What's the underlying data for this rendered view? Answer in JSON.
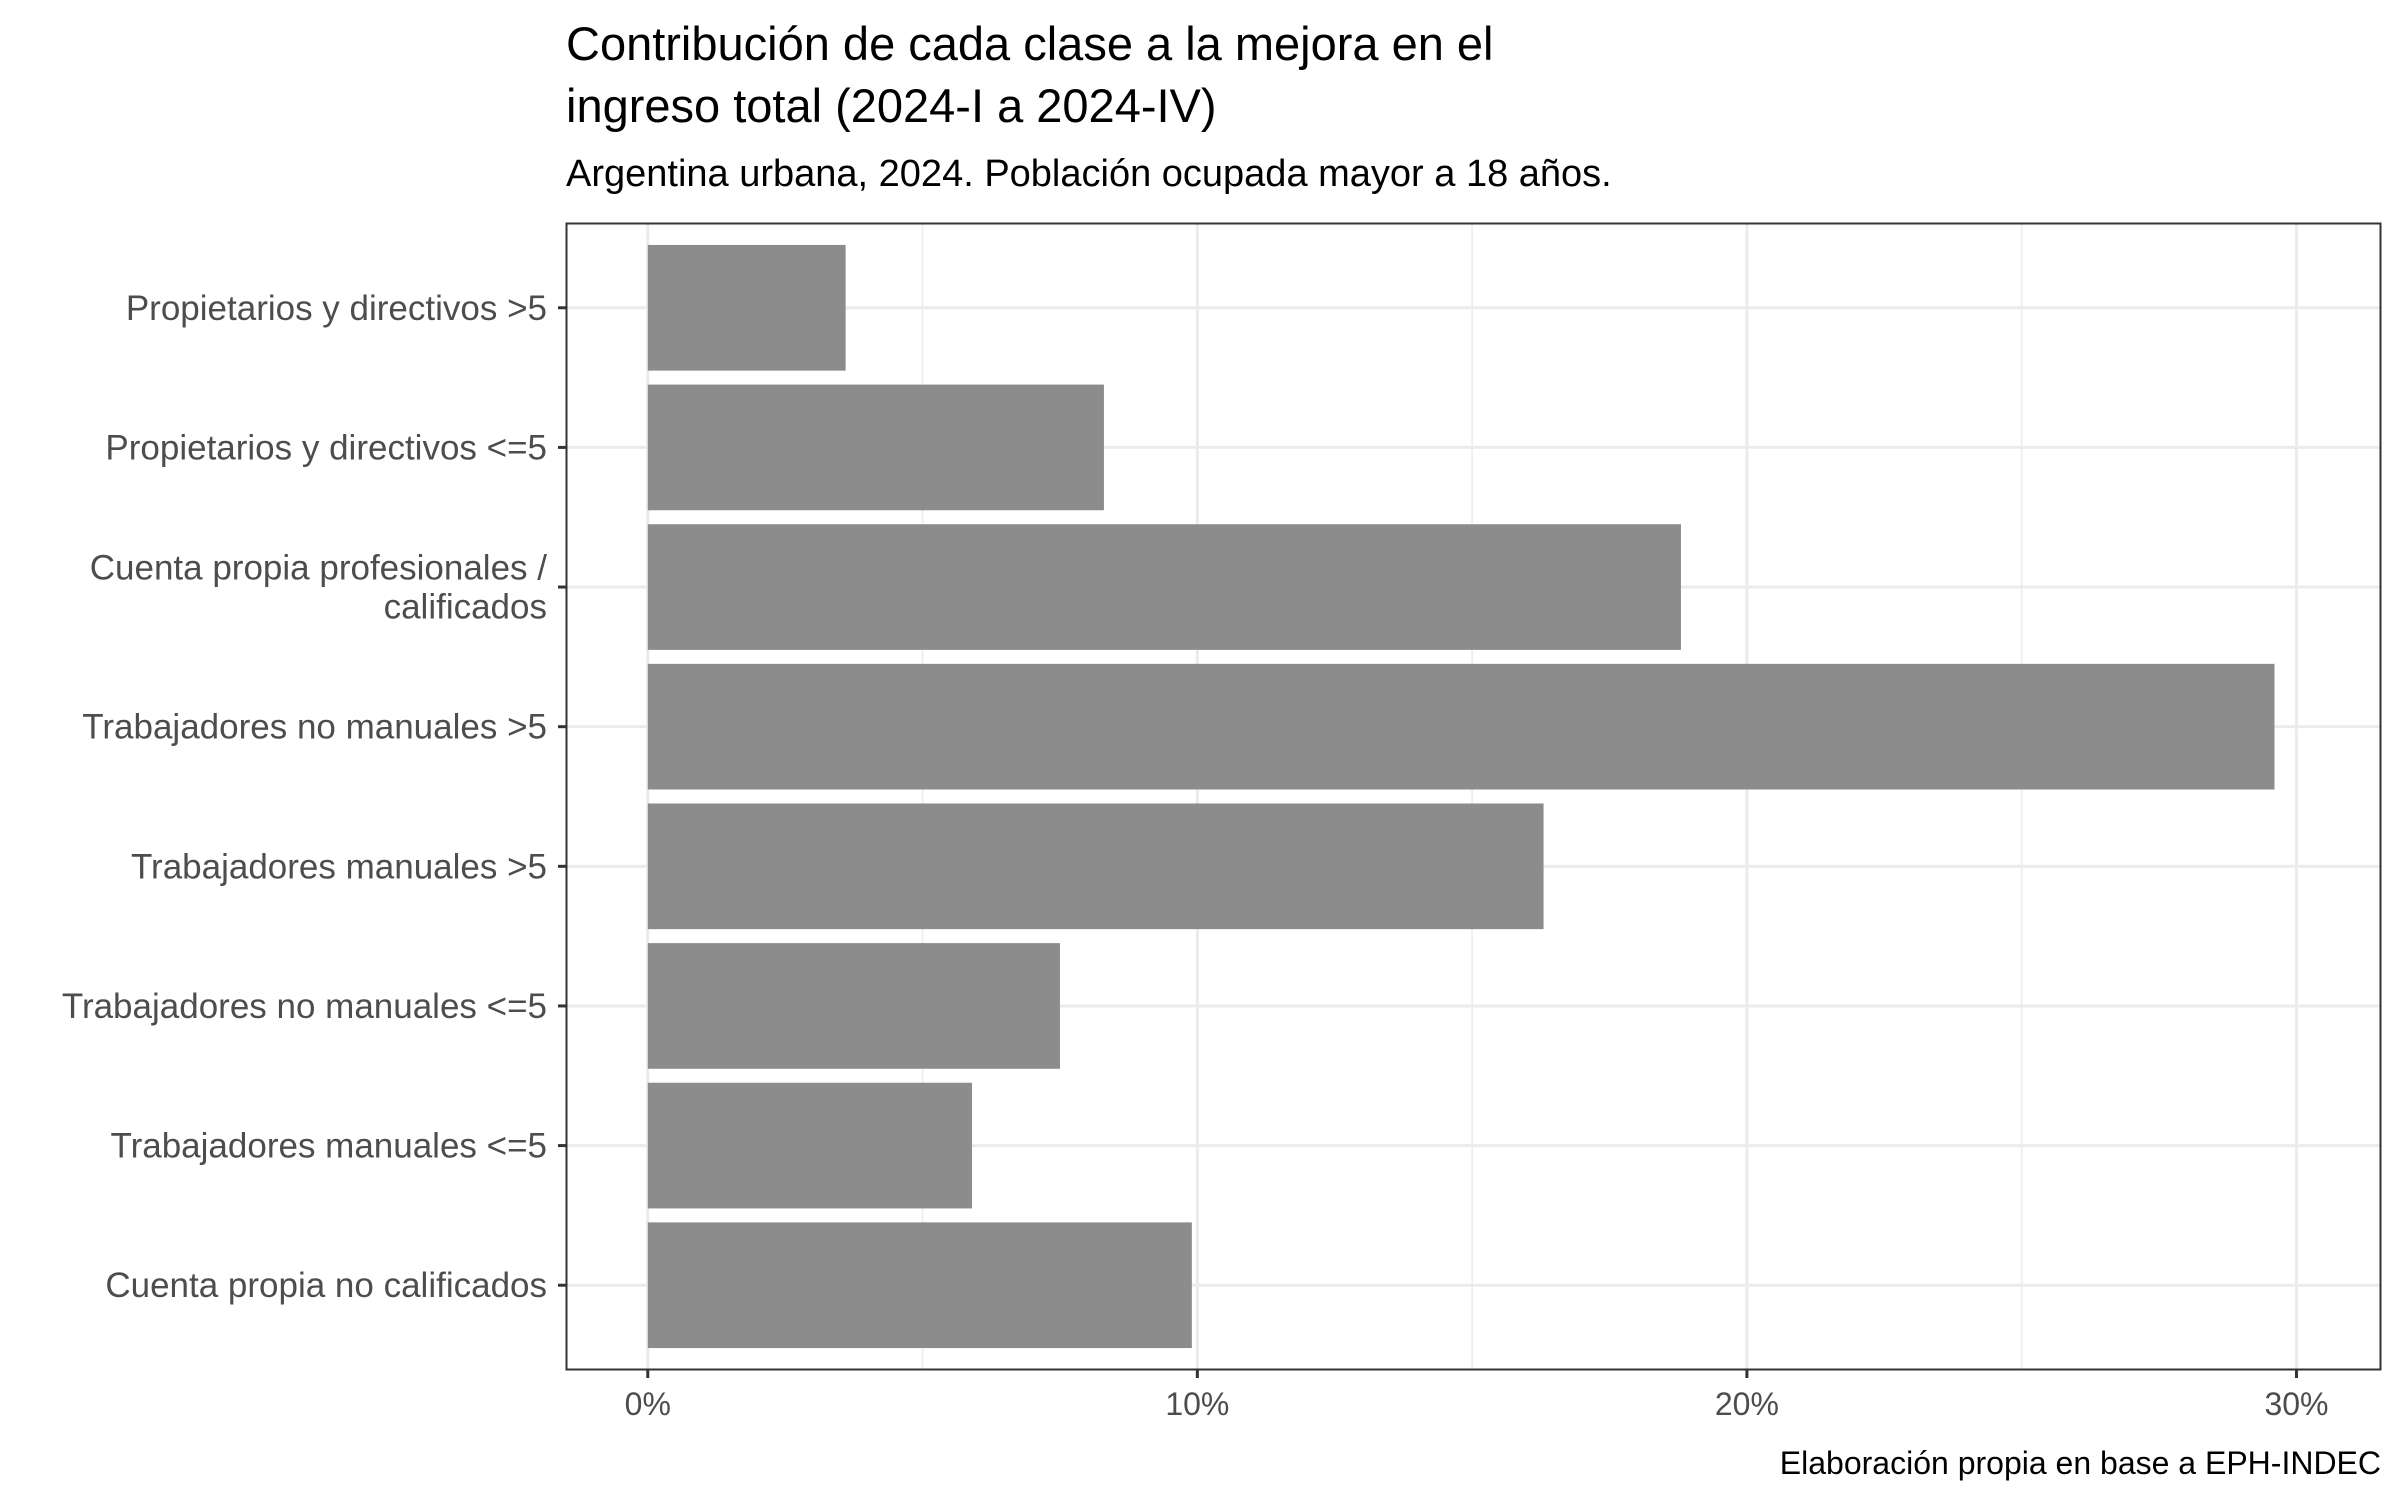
{
  "chart_data": {
    "type": "bar",
    "orientation": "horizontal",
    "title_lines": [
      "Contribución de cada clase a la mejora en el",
      "ingreso total (2024-I a 2024-IV)"
    ],
    "subtitle": "Argentina urbana, 2024. Población ocupada mayor a 18 años.",
    "caption": "Elaboración propia en base a EPH-INDEC",
    "xlabel": "",
    "ylabel": "",
    "categories": [
      [
        "Propietarios y directivos >5"
      ],
      [
        "Propietarios y directivos <=5"
      ],
      [
        "Cuenta propia profesionales /",
        "calificados"
      ],
      [
        "Trabajadores no manuales >5"
      ],
      [
        "Trabajadores manuales >5"
      ],
      [
        "Trabajadores no manuales <=5"
      ],
      [
        "Trabajadores manuales <=5"
      ],
      [
        "Cuenta propia no calificados"
      ]
    ],
    "values": [
      3.6,
      8.3,
      18.8,
      29.6,
      16.3,
      7.5,
      5.9,
      9.9
    ],
    "value_unit": "%",
    "xlim": [
      -1.47,
      31.52
    ],
    "xticks": [
      0,
      10,
      20,
      30
    ],
    "xtick_labels": [
      "0%",
      "10%",
      "20%",
      "30%"
    ],
    "grid": true,
    "bar_color": "#8c8c8c"
  }
}
